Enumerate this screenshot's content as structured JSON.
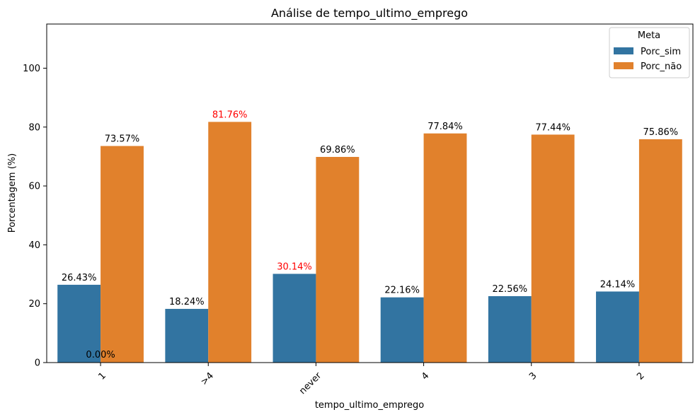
{
  "chart_data": {
    "type": "bar",
    "title": "Análise de tempo_ultimo_emprego",
    "xlabel": "tempo_ultimo_emprego",
    "ylabel": "Porcentagem (%)",
    "ylim": [
      0,
      115
    ],
    "yticks": [
      0,
      20,
      40,
      60,
      80,
      100
    ],
    "categories": [
      "1",
      ">4",
      "never",
      "4",
      "3",
      "2"
    ],
    "series": [
      {
        "name": "Porc_sim",
        "color": "#3274a1",
        "values": [
          26.43,
          18.24,
          30.14,
          22.16,
          22.56,
          24.14
        ],
        "labels": [
          "26.43%",
          "18.24%",
          "30.14%",
          "22.16%",
          "22.56%",
          "24.14%"
        ]
      },
      {
        "name": "Porc_não",
        "color": "#e1812c",
        "values": [
          73.57,
          81.76,
          69.86,
          77.84,
          77.44,
          75.86
        ],
        "labels": [
          "73.57%",
          "81.76%",
          "69.86%",
          "77.84%",
          "77.44%",
          "75.86%"
        ]
      }
    ],
    "highlight_color": "#ff0000",
    "highlights": [
      {
        "series": 1,
        "index": 1
      },
      {
        "series": 0,
        "index": 2
      }
    ],
    "extra_annotation": "0.00%",
    "legend": {
      "title": "Meta",
      "placement": "top-right"
    },
    "grid": false
  }
}
